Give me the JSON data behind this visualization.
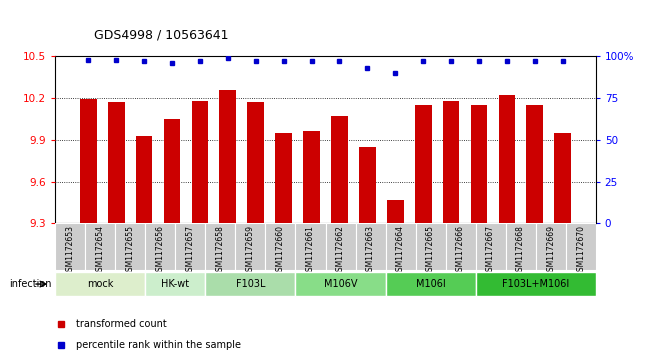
{
  "title": "GDS4998 / 10563641",
  "samples": [
    "GSM1172653",
    "GSM1172654",
    "GSM1172655",
    "GSM1172656",
    "GSM1172657",
    "GSM1172658",
    "GSM1172659",
    "GSM1172660",
    "GSM1172661",
    "GSM1172662",
    "GSM1172663",
    "GSM1172664",
    "GSM1172665",
    "GSM1172666",
    "GSM1172667",
    "GSM1172668",
    "GSM1172669",
    "GSM1172670"
  ],
  "bar_values": [
    10.19,
    10.17,
    9.93,
    10.05,
    10.18,
    10.26,
    10.17,
    9.95,
    9.96,
    10.07,
    9.85,
    9.47,
    10.15,
    10.18,
    10.15,
    10.22,
    10.15,
    9.95
  ],
  "percentile_values": [
    98,
    98,
    97,
    96,
    97,
    99,
    97,
    97,
    97,
    97,
    93,
    90,
    97,
    97,
    97,
    97,
    97,
    97
  ],
  "ymin": 9.3,
  "ylim_left": [
    9.3,
    10.5
  ],
  "ylim_right": [
    0,
    100
  ],
  "yticks_left": [
    9.3,
    9.6,
    9.9,
    10.2,
    10.5
  ],
  "yticks_right": [
    0,
    25,
    50,
    75,
    100
  ],
  "ytick_labels_right": [
    "0",
    "25",
    "50",
    "75",
    "100%"
  ],
  "bar_color": "#cc0000",
  "dot_color": "#0000cc",
  "groups": [
    {
      "label": "mock",
      "start": 0,
      "end": 2,
      "color": "#ddeecc"
    },
    {
      "label": "HK-wt",
      "start": 3,
      "end": 4,
      "color": "#cceecc"
    },
    {
      "label": "F103L",
      "start": 5,
      "end": 7,
      "color": "#aaddaa"
    },
    {
      "label": "M106V",
      "start": 8,
      "end": 10,
      "color": "#88dd88"
    },
    {
      "label": "M106I",
      "start": 11,
      "end": 13,
      "color": "#55cc55"
    },
    {
      "label": "F103L+M106I",
      "start": 14,
      "end": 17,
      "color": "#33bb33"
    }
  ],
  "infection_label": "infection",
  "legend_items": [
    {
      "label": "transformed count",
      "color": "#cc0000"
    },
    {
      "label": "percentile rank within the sample",
      "color": "#0000cc"
    }
  ],
  "sample_box_color": "#cccccc",
  "grid_color": "#555555"
}
